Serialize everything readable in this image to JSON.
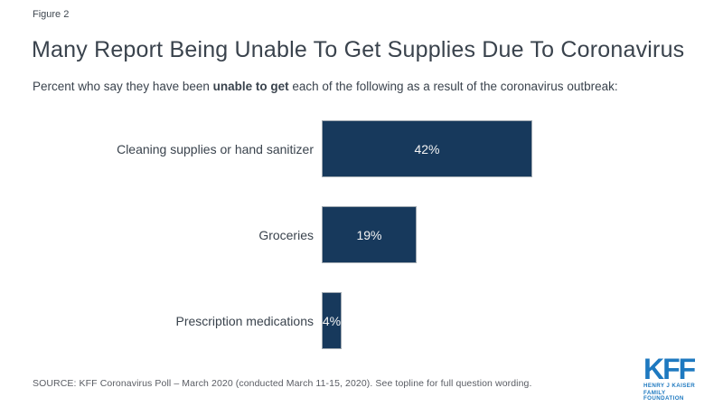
{
  "figure_label": "Figure 2",
  "title": "Many Report Being Unable To Get Supplies Due To Coronavirus",
  "subtitle": {
    "prefix": "Percent who say they have been ",
    "bold": "unable to get",
    "suffix": " each of the following as a result of the coronavirus outbreak:"
  },
  "chart_data": {
    "type": "bar",
    "orientation": "horizontal",
    "categories": [
      "Cleaning supplies or hand sanitizer",
      "Groceries",
      "Prescription medications"
    ],
    "values": [
      42,
      19,
      4
    ],
    "value_labels": [
      "42%",
      "19%",
      "4%"
    ],
    "title": "Many Report Being Unable To Get Supplies Due To Coronavirus",
    "xlabel": "",
    "ylabel": "",
    "xlim": [
      0,
      100
    ],
    "grid": false,
    "legend": false,
    "axes_shown": false,
    "bar_color": "#17395c",
    "value_label_color": "#ffffff",
    "value_label_position": "inside-center"
  },
  "source": "SOURCE: KFF Coronavirus Poll – March 2020 (conducted March 11-15, 2020). See topline for full question wording.",
  "logo": {
    "acronym": "KFF",
    "line1": "HENRY J KAISER",
    "line2": "FAMILY FOUNDATION",
    "color": "#1e79c0"
  }
}
